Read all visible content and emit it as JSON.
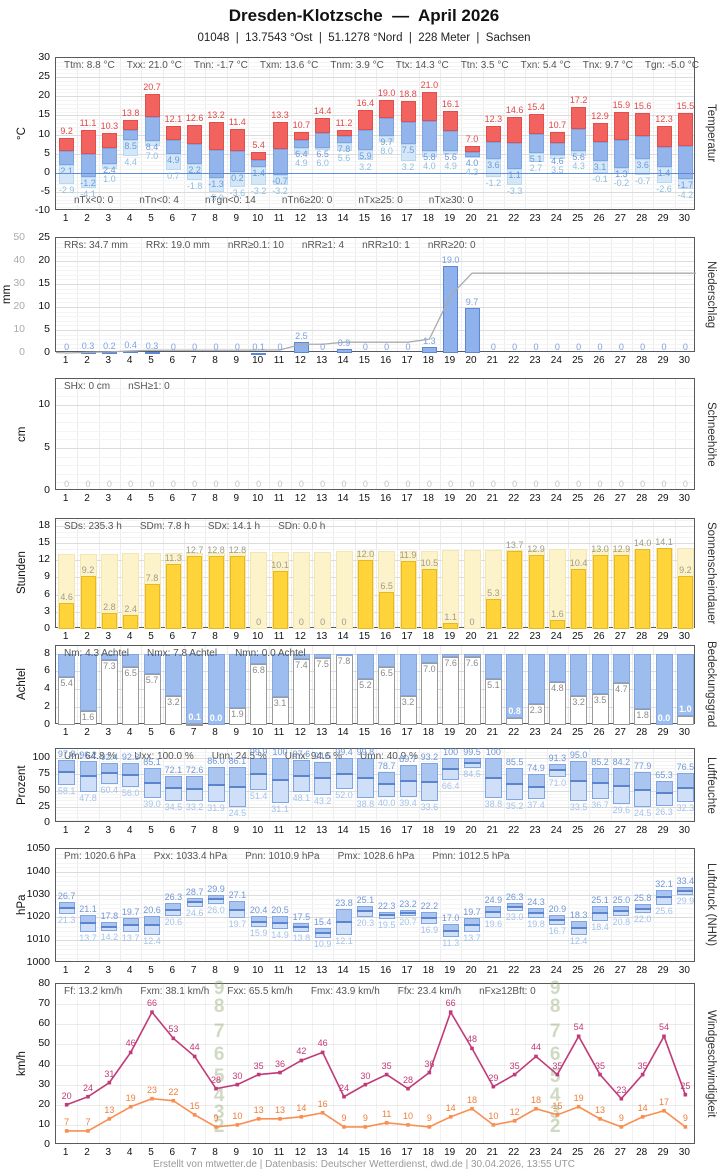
{
  "header": {
    "title": "Dresden-Klotzsche  —  April 2026",
    "subtitle": "01048  |  13.7543 °Ost  |  51.1278 °Nord  |  228 Meter  |  Sachsen"
  },
  "footer": {
    "credit": "Erstellt von mtwetter.de | Datenbasis: Deutscher Wetterdienst, dwd.de | 30.04.2026, 13:55 UTC"
  },
  "days": [
    1,
    2,
    3,
    4,
    5,
    6,
    7,
    8,
    9,
    10,
    11,
    12,
    13,
    14,
    15,
    16,
    17,
    18,
    19,
    20,
    21,
    22,
    23,
    24,
    25,
    26,
    27,
    28,
    29,
    30
  ],
  "chart_data": [
    {
      "id": "temperature",
      "type": "bar",
      "unit_left": "°C",
      "label_right": "Temperatur",
      "ylim": [
        -10,
        30
      ],
      "yticks": [
        30,
        25,
        20,
        15,
        10,
        5,
        0,
        -5,
        -10
      ],
      "stats": [
        "Ttm: 8.8 °C",
        "Txx: 21.0 °C",
        "Tnn: -1.7 °C",
        "Txm: 13.6 °C",
        "Tnm: 3.9 °C",
        "Ttx: 14.3 °C",
        "Ttn: 3.5 °C",
        "Txn: 5.4 °C",
        "Tnx: 9.7 °C",
        "Tgn: -5.0 °C"
      ],
      "notes": [
        "nTx<0: 0",
        "nTn<0: 4",
        "nTgn<0: 14",
        "nTn6≥20: 0",
        "nTx≥25: 0",
        "nTx≥30: 0"
      ],
      "series": [
        {
          "name": "Tmax",
          "color": "#f26360",
          "values": [
            9.2,
            11.1,
            10.3,
            13.8,
            20.7,
            12.1,
            12.6,
            13.2,
            11.4,
            5.4,
            13.3,
            10.7,
            14.4,
            11.2,
            16.4,
            19.0,
            18.8,
            21.0,
            16.1,
            7.0,
            12.3,
            14.6,
            15.4,
            10.7,
            17.2,
            12.9,
            15.9,
            15.6,
            12.3,
            15.5
          ]
        },
        {
          "name": "Tmin",
          "color": "#94b5eb",
          "values": [
            2.1,
            -1.2,
            2.4,
            8.5,
            8.4,
            4.9,
            2.2,
            -1.3,
            0.2,
            1.4,
            -0.7,
            6.4,
            6.5,
            7.8,
            5.9,
            9.7,
            7.5,
            5.8,
            5.6,
            4.0,
            3.6,
            1.1,
            5.1,
            4.6,
            5.6,
            3.1,
            1.3,
            3.6,
            1.4,
            -1.7
          ]
        },
        {
          "name": "Tmin-Boden",
          "color": "#d3e7f8",
          "values": [
            -2.9,
            -4.1,
            1.0,
            4.4,
            7.0,
            0.7,
            -1.8,
            -5.0,
            -3.6,
            -3.2,
            -3.2,
            4.9,
            6.0,
            5.6,
            3.2,
            8.0,
            3.2,
            4.0,
            4.9,
            4.3,
            -1.2,
            -3.3,
            2.7,
            3.5,
            4.3,
            -0.1,
            -0.2,
            -0.7,
            -2.6,
            -4.2
          ]
        }
      ]
    },
    {
      "id": "precipitation",
      "type": "bar",
      "unit_left": "mm",
      "label_right": "Niederschlag",
      "ylim": [
        0,
        25
      ],
      "yticks": [
        0,
        5,
        10,
        15,
        20,
        25
      ],
      "ylim_outer": [
        0,
        50
      ],
      "yticks_outer": [
        0,
        10,
        20,
        30,
        40,
        50
      ],
      "stats": [
        "RRs: 34.7 mm",
        "RRx: 19.0 mm",
        "nRR≥0.1: 10",
        "nRR≥1: 4",
        "nRR≥10: 1",
        "nRR≥20: 0"
      ],
      "values": [
        0,
        0.3,
        0.2,
        0.4,
        0.3,
        0,
        0,
        0,
        0,
        0.1,
        0,
        2.5,
        0,
        0.9,
        0,
        0,
        0,
        1.3,
        19.0,
        9.7,
        0,
        0,
        0,
        0,
        0,
        0,
        0,
        0,
        0,
        0
      ],
      "cumulative_total": 34.7
    },
    {
      "id": "snow",
      "type": "bar",
      "unit_left": "cm",
      "label_right": "Schneehöhe",
      "ylim": [
        0,
        13
      ],
      "yticks": [
        0,
        5,
        10
      ],
      "stats": [
        "SHx: 0 cm",
        "nSH≥1: 0"
      ],
      "values": [
        0,
        0,
        0,
        0,
        0,
        0,
        0,
        0,
        0,
        0,
        0,
        0,
        0,
        0,
        0,
        0,
        0,
        0,
        0,
        0,
        0,
        0,
        0,
        0,
        0,
        0,
        0,
        0,
        0,
        0
      ]
    },
    {
      "id": "sunshine",
      "type": "bar",
      "unit_left": "Stunden",
      "label_right": "Sonnenscheindauer",
      "ylim": [
        0,
        19.2
      ],
      "yticks": [
        0,
        3,
        6,
        9,
        12,
        15,
        18
      ],
      "stats": [
        "SDs: 235.3 h",
        "SDm: 7.8 h",
        "SDx: 14.1 h",
        "SDn: 0.0 h"
      ],
      "values": [
        4.6,
        9.2,
        2.8,
        2.4,
        7.8,
        11.3,
        12.7,
        12.8,
        12.8,
        0,
        10.1,
        0,
        0,
        0,
        12.0,
        6.5,
        11.9,
        10.5,
        1.1,
        0,
        5.3,
        13.7,
        12.9,
        1.6,
        10.4,
        13.0,
        12.9,
        14.0,
        14.1,
        9.2
      ],
      "daylight": {
        "start": 13.1,
        "end": 14.1
      }
    },
    {
      "id": "cloud",
      "type": "bar",
      "unit_left": "Achtel",
      "label_right": "Bedeckungsgrad",
      "ylim": [
        0,
        8.85
      ],
      "yticks": [
        0,
        2,
        4,
        6,
        8
      ],
      "scale_max": 8,
      "stats": [
        "Nm: 4.3 Achtel",
        "Nmx: 7.8 Achtel",
        "Nmn: 0.0 Achtel"
      ],
      "values": [
        5.4,
        1.6,
        7.3,
        6.5,
        5.7,
        3.2,
        0.1,
        0.0,
        1.9,
        6.8,
        3.1,
        7.4,
        7.5,
        7.8,
        5.2,
        6.5,
        3.2,
        7.0,
        7.6,
        7.6,
        5.1,
        0.8,
        2.3,
        4.8,
        3.2,
        3.5,
        4.7,
        1.8,
        0.0,
        1.0
      ]
    },
    {
      "id": "humidity",
      "type": "bar",
      "unit_left": "Prozent",
      "label_right": "Luftfeuchte",
      "ylim": [
        0,
        114
      ],
      "yticks": [
        0,
        25,
        50,
        75,
        100
      ],
      "stats": [
        "Um: 64.8 %",
        "Uxx: 100.0 %",
        "Unn: 24.5 %",
        "Umx: 94.6 %",
        "Umn: 40.9 %"
      ],
      "series": [
        {
          "name": "Umax",
          "values": [
            97.8,
            96.2,
            92.4,
            92.3,
            85.1,
            72.1,
            72.6,
            86.0,
            86.1,
            99.9,
            100,
            97.6,
            94.5,
            99.4,
            99.8,
            78.7,
            89.7,
            93.2,
            100,
            99.5,
            100,
            85.5,
            74.9,
            91.3,
            95.0,
            85.2,
            84.2,
            77.9,
            65.3,
            76.5
          ]
        },
        {
          "name": "Umin",
          "values": [
            58.1,
            47.8,
            60.4,
            56.0,
            39.0,
            34.5,
            33.2,
            31.9,
            24.5,
            51.4,
            31.1,
            48.1,
            43.2,
            52.0,
            38.8,
            40.0,
            39.4,
            33.6,
            66.4,
            84.5,
            38.8,
            35.2,
            37.4,
            71.0,
            33.5,
            36.7,
            29.6,
            24.5,
            26.3,
            32.3
          ]
        }
      ]
    },
    {
      "id": "pressure",
      "type": "bar",
      "unit_left": "hPa",
      "label_right": "Luftdruck (NHN)",
      "ylim": [
        1000,
        1050
      ],
      "yticks": [
        1000,
        1010,
        1020,
        1030,
        1040,
        1050
      ],
      "stats": [
        "Pm: 1020.6 hPa",
        "Pxx: 1033.4 hPa",
        "Pnn: 1010.9 hPa",
        "Pmx: 1028.6 hPa",
        "Pmn: 1012.5 hPa"
      ],
      "series": [
        {
          "name": "Pmax",
          "values": [
            1026.7,
            1021.1,
            1017.8,
            1019.7,
            1020.6,
            1026.3,
            1028.7,
            1029.9,
            1027.1,
            1020.4,
            1020.5,
            1017.5,
            1015.4,
            1023.8,
            1025.1,
            1022.3,
            1023.2,
            1022.2,
            1017.0,
            1019.7,
            1024.9,
            1026.3,
            1024.3,
            1020.9,
            1018.3,
            1025.1,
            1025.0,
            1025.8,
            1032.1,
            1033.4
          ]
        },
        {
          "name": "Pmin",
          "values": [
            1021.3,
            1013.7,
            1014.2,
            1013.7,
            1012.4,
            1020.6,
            1024.6,
            1026.0,
            1019.7,
            1015.9,
            1014.9,
            1013.8,
            1010.9,
            1012.1,
            1020.3,
            1019.5,
            1020.7,
            1016.9,
            1011.3,
            1013.7,
            1019.6,
            1023.0,
            1019.8,
            1016.7,
            1012.4,
            1018.4,
            1020.8,
            1022.0,
            1025.6,
            1029.9
          ]
        }
      ]
    },
    {
      "id": "wind",
      "type": "line",
      "unit_left": "km/h",
      "label_right": "Windgeschwindigkeit",
      "ylim": [
        0,
        80
      ],
      "yticks": [
        0,
        10,
        20,
        30,
        40,
        50,
        60,
        70,
        80
      ],
      "stats": [
        "Ff: 13.2 km/h",
        "Fxm: 38.1 km/h",
        "Fxx: 65.5 km/h",
        "Fmx: 43.9 km/h",
        "Ffx: 23.4 km/h",
        "nFx≥12Bft: 0"
      ],
      "series": [
        {
          "name": "Windspitze",
          "color": "#c13a78",
          "label_color": "#c13a78",
          "values": [
            20,
            24,
            31,
            46,
            66,
            53,
            44,
            28,
            30,
            35,
            36,
            42,
            46,
            24,
            30,
            35,
            28,
            36,
            66,
            48,
            29,
            35,
            44,
            35,
            54,
            35,
            23,
            35,
            54,
            25
          ]
        },
        {
          "name": "Windmittel",
          "color": "#f98e52",
          "label_color": "#ef7d36",
          "values": [
            7,
            7,
            13,
            19,
            23,
            22,
            15,
            9,
            10,
            13,
            13,
            14,
            16,
            9,
            9,
            11,
            10,
            9,
            14,
            18,
            10,
            12,
            18,
            15,
            19,
            13,
            9,
            14,
            17,
            9
          ]
        }
      ],
      "beaufort_bands": [
        {
          "bft": null,
          "from": 0,
          "to": 6,
          "color": "#e7fbf6"
        },
        {
          "bft": "2",
          "from": 6,
          "to": 12,
          "color": "#e3f8ef"
        },
        {
          "bft": "3",
          "from": 12,
          "to": 20,
          "color": "#e3f6e3"
        },
        {
          "bft": "4",
          "from": 20,
          "to": 29,
          "color": "#e6f5d8"
        },
        {
          "bft": "5",
          "from": 29,
          "to": 39,
          "color": "#edf6d4"
        },
        {
          "bft": "6",
          "from": 39,
          "to": 50,
          "color": "#f4f6d2"
        },
        {
          "bft": "7",
          "from": 50,
          "to": 62,
          "color": "#faf3d0"
        },
        {
          "bft": "8",
          "from": 62,
          "to": 75,
          "color": "#fcead2"
        },
        {
          "bft": "9",
          "from": 75,
          "to": 88,
          "color": "#fbdfd3"
        }
      ]
    }
  ]
}
